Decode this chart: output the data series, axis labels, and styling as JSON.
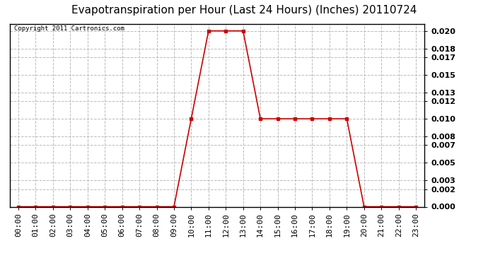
{
  "title": "Evapotranspiration per Hour (Last 24 Hours) (Inches) 20110724",
  "copyright": "Copyright 2011 Cartronics.com",
  "hours": [
    "00:00",
    "01:00",
    "02:00",
    "03:00",
    "04:00",
    "05:00",
    "06:00",
    "07:00",
    "08:00",
    "09:00",
    "10:00",
    "11:00",
    "12:00",
    "13:00",
    "14:00",
    "15:00",
    "16:00",
    "17:00",
    "18:00",
    "19:00",
    "20:00",
    "21:00",
    "22:00",
    "23:00"
  ],
  "values": [
    0.0,
    0.0,
    0.0,
    0.0,
    0.0,
    0.0,
    0.0,
    0.0,
    0.0,
    0.0,
    0.01,
    0.02,
    0.02,
    0.02,
    0.01,
    0.01,
    0.01,
    0.01,
    0.01,
    0.01,
    0.0,
    0.0,
    0.0,
    0.0
  ],
  "line_color": "#cc0000",
  "marker": "s",
  "marker_size": 3,
  "marker_color": "#cc0000",
  "fig_bg_color": "#ffffff",
  "plot_bg_color": "#ffffff",
  "grid_color": "#bbbbbb",
  "title_fontsize": 11,
  "copyright_fontsize": 6.5,
  "tick_fontsize": 8,
  "ylim": [
    0.0,
    0.0208
  ],
  "yticks": [
    0.0,
    0.002,
    0.003,
    0.005,
    0.007,
    0.008,
    0.01,
    0.012,
    0.013,
    0.015,
    0.017,
    0.018,
    0.02
  ]
}
